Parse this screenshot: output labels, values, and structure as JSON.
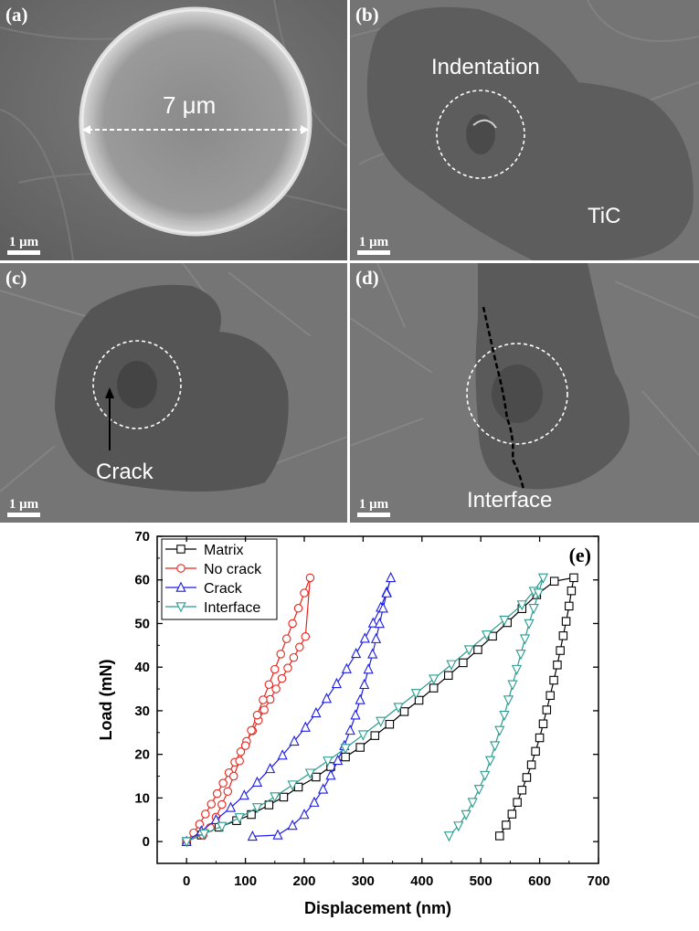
{
  "panels": {
    "a": {
      "label": "(a)",
      "scale": "1 μm",
      "measure": "7 μm"
    },
    "b": {
      "label": "(b)",
      "scale": "1 μm",
      "indentation": "Indentation",
      "phase": "TiC"
    },
    "c": {
      "label": "(c)",
      "scale": "1 μm",
      "crack": "Crack"
    },
    "d": {
      "label": "(d)",
      "scale": "1 μm",
      "interface": "Interface"
    }
  },
  "chart_data": {
    "type": "line",
    "panel_label": "(e)",
    "xlabel": "Displacement (nm)",
    "ylabel": "Load (mN)",
    "xlim": [
      -50,
      700
    ],
    "ylim": [
      -5,
      70
    ],
    "xticks": [
      0,
      100,
      200,
      300,
      400,
      500,
      600,
      700
    ],
    "yticks": [
      0,
      10,
      20,
      30,
      40,
      50,
      60,
      70
    ],
    "legend_position": "top-left",
    "series": [
      {
        "name": "Matrix",
        "color": "#000000",
        "marker": "square",
        "loading": [
          [
            0,
            0
          ],
          [
            25,
            1.5
          ],
          [
            55,
            3.3
          ],
          [
            85,
            4.8
          ],
          [
            110,
            6.2
          ],
          [
            140,
            8.4
          ],
          [
            165,
            10.2
          ],
          [
            190,
            12.5
          ],
          [
            220,
            14.8
          ],
          [
            245,
            17.2
          ],
          [
            270,
            19.4
          ],
          [
            295,
            21.6
          ],
          [
            320,
            24.3
          ],
          [
            345,
            26.9
          ],
          [
            370,
            29.8
          ],
          [
            395,
            32.4
          ],
          [
            420,
            35.2
          ],
          [
            445,
            38.1
          ],
          [
            470,
            41.0
          ],
          [
            495,
            44.0
          ],
          [
            520,
            47.1
          ],
          [
            545,
            50.2
          ],
          [
            570,
            53.4
          ],
          [
            595,
            56.6
          ],
          [
            625,
            59.7
          ],
          [
            658,
            60.5
          ]
        ],
        "unloading": [
          [
            658,
            60.5
          ],
          [
            654,
            57.5
          ],
          [
            650,
            54.0
          ],
          [
            645,
            50.5
          ],
          [
            640,
            47.2
          ],
          [
            635,
            43.8
          ],
          [
            630,
            40.5
          ],
          [
            624,
            37.0
          ],
          [
            618,
            33.5
          ],
          [
            612,
            30.2
          ],
          [
            606,
            27.0
          ],
          [
            600,
            23.8
          ],
          [
            593,
            20.7
          ],
          [
            586,
            17.6
          ],
          [
            578,
            14.7
          ],
          [
            570,
            11.8
          ],
          [
            562,
            9.0
          ],
          [
            553,
            6.3
          ],
          [
            543,
            3.8
          ],
          [
            532,
            1.3
          ]
        ]
      },
      {
        "name": "No crack",
        "color": "#e8241c",
        "marker": "circle",
        "loading": [
          [
            0,
            0
          ],
          [
            12,
            2.0
          ],
          [
            22,
            4.0
          ],
          [
            32,
            6.3
          ],
          [
            42,
            8.6
          ],
          [
            52,
            11.0
          ],
          [
            62,
            13.4
          ],
          [
            72,
            15.8
          ],
          [
            82,
            18.2
          ],
          [
            92,
            20.6
          ],
          [
            102,
            23.0
          ],
          [
            112,
            25.4
          ],
          [
            122,
            27.8
          ],
          [
            132,
            30.2
          ],
          [
            142,
            32.6
          ],
          [
            152,
            35.0
          ],
          [
            162,
            37.4
          ],
          [
            172,
            39.8
          ],
          [
            182,
            42.2
          ],
          [
            192,
            44.6
          ],
          [
            202,
            47.0
          ],
          [
            210,
            60.5
          ]
        ],
        "unloading": [
          [
            210,
            60.5
          ],
          [
            200,
            57.0
          ],
          [
            190,
            53.5
          ],
          [
            180,
            50.0
          ],
          [
            170,
            46.5
          ],
          [
            160,
            43.0
          ],
          [
            150,
            39.5
          ],
          [
            140,
            36.0
          ],
          [
            130,
            32.5
          ],
          [
            120,
            29.0
          ],
          [
            110,
            25.5
          ],
          [
            100,
            22.0
          ],
          [
            90,
            18.5
          ],
          [
            80,
            15.0
          ],
          [
            70,
            11.5
          ],
          [
            60,
            8.5
          ],
          [
            50,
            5.6
          ],
          [
            40,
            3.2
          ],
          [
            28,
            1.5
          ]
        ]
      },
      {
        "name": "Crack",
        "color": "#1c1ce8",
        "marker": "triangle-up",
        "loading": [
          [
            0,
            0
          ],
          [
            25,
            2.4
          ],
          [
            50,
            5.0
          ],
          [
            75,
            7.8
          ],
          [
            98,
            10.6
          ],
          [
            120,
            13.6
          ],
          [
            142,
            16.7
          ],
          [
            163,
            19.8
          ],
          [
            183,
            23.0
          ],
          [
            202,
            26.2
          ],
          [
            220,
            29.5
          ],
          [
            238,
            32.8
          ],
          [
            255,
            36.2
          ],
          [
            272,
            39.6
          ],
          [
            288,
            43.1
          ],
          [
            303,
            46.6
          ],
          [
            317,
            50.1
          ],
          [
            330,
            53.7
          ],
          [
            340,
            57.2
          ],
          [
            347,
            60.5
          ]
        ],
        "unloading": [
          [
            347,
            60.5
          ],
          [
            340,
            57.0
          ],
          [
            334,
            53.5
          ],
          [
            328,
            50.0
          ],
          [
            322,
            46.5
          ],
          [
            316,
            43.0
          ],
          [
            309,
            39.5
          ],
          [
            302,
            36.0
          ],
          [
            295,
            32.5
          ],
          [
            287,
            29.0
          ],
          [
            278,
            25.5
          ],
          [
            268,
            22.0
          ],
          [
            257,
            18.6
          ],
          [
            245,
            15.2
          ],
          [
            232,
            12.0
          ],
          [
            217,
            9.0
          ],
          [
            200,
            6.2
          ],
          [
            180,
            3.7
          ],
          [
            155,
            1.5
          ],
          [
            112,
            1.2
          ]
        ]
      },
      {
        "name": "Interface",
        "color": "#2a9b8f",
        "marker": "triangle-down",
        "loading": [
          [
            0,
            0
          ],
          [
            30,
            1.8
          ],
          [
            60,
            3.5
          ],
          [
            90,
            5.5
          ],
          [
            120,
            7.8
          ],
          [
            150,
            10.3
          ],
          [
            180,
            13.0
          ],
          [
            210,
            15.7
          ],
          [
            240,
            18.5
          ],
          [
            270,
            21.4
          ],
          [
            300,
            24.5
          ],
          [
            330,
            27.6
          ],
          [
            360,
            30.8
          ],
          [
            390,
            34.0
          ],
          [
            420,
            37.3
          ],
          [
            450,
            40.6
          ],
          [
            480,
            44.0
          ],
          [
            510,
            47.4
          ],
          [
            540,
            50.8
          ],
          [
            570,
            54.3
          ],
          [
            590,
            57.4
          ],
          [
            606,
            60.5
          ]
        ],
        "unloading": [
          [
            606,
            60.5
          ],
          [
            598,
            57.0
          ],
          [
            590,
            53.5
          ],
          [
            582,
            50.0
          ],
          [
            575,
            46.5
          ],
          [
            568,
            43.0
          ],
          [
            561,
            39.5
          ],
          [
            554,
            36.0
          ],
          [
            547,
            32.5
          ],
          [
            540,
            29.0
          ],
          [
            532,
            25.5
          ],
          [
            524,
            22.0
          ],
          [
            516,
            18.6
          ],
          [
            507,
            15.2
          ],
          [
            497,
            12.0
          ],
          [
            486,
            9.0
          ],
          [
            475,
            6.2
          ],
          [
            462,
            3.6
          ],
          [
            446,
            1.3
          ]
        ]
      }
    ]
  }
}
